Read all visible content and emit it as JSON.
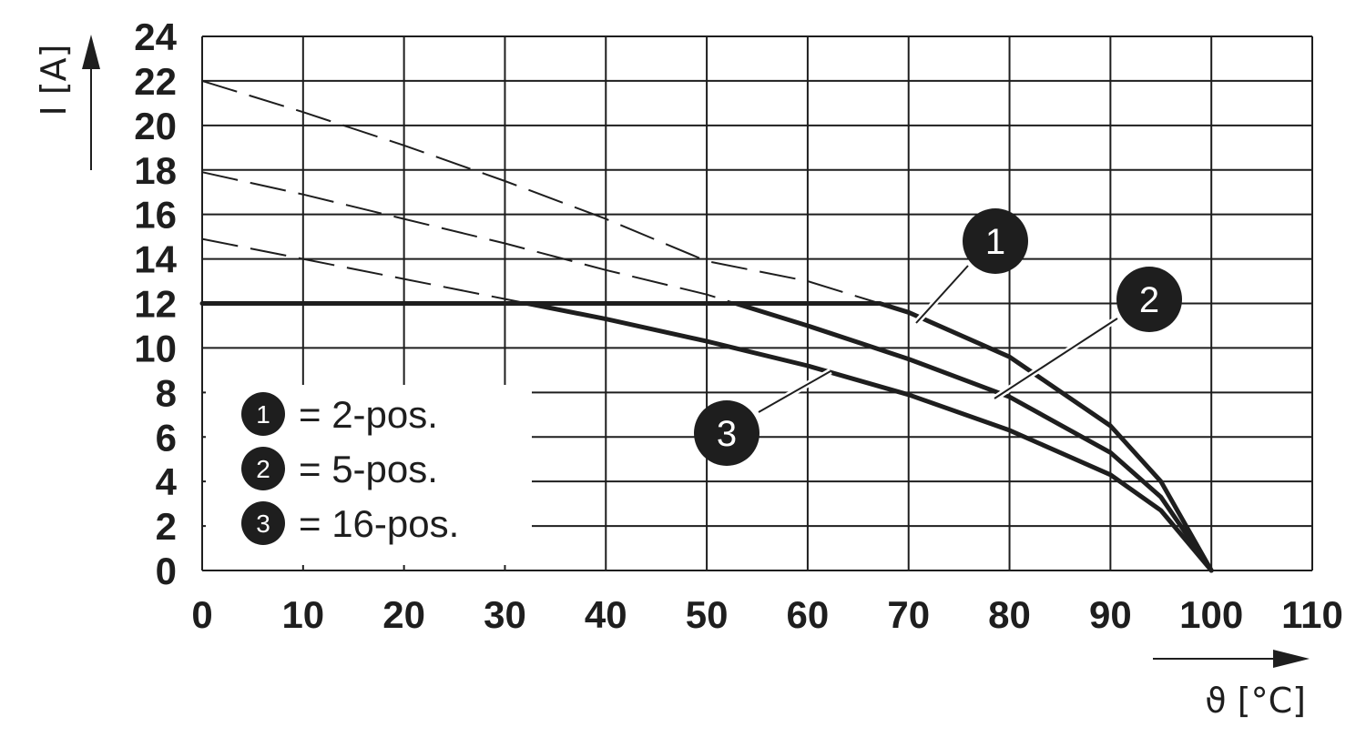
{
  "chart_data": {
    "type": "line",
    "xlabel": "ϑ [°C]",
    "ylabel": "I [A]",
    "xlim": [
      0,
      110
    ],
    "ylim": [
      0,
      24
    ],
    "x_ticks": [
      0,
      10,
      20,
      30,
      40,
      50,
      60,
      70,
      80,
      90,
      100,
      110
    ],
    "y_ticks": [
      0,
      2,
      4,
      6,
      8,
      10,
      12,
      14,
      16,
      18,
      20,
      22,
      24
    ],
    "x_tick_labels": [
      "0",
      "10",
      "20",
      "30",
      "40",
      "50",
      "60",
      "70",
      "80",
      "90",
      "100",
      "110"
    ],
    "y_tick_labels": [
      "0",
      "2",
      "4",
      "6",
      "8",
      "10",
      "12",
      "14",
      "16",
      "18",
      "20",
      "22",
      "24"
    ],
    "grid": true,
    "limit_line": {
      "style": "solid",
      "points": [
        [
          0,
          12
        ],
        [
          67,
          12
        ]
      ]
    },
    "series": [
      {
        "marker": "1",
        "name": "2-pos.",
        "derating": [
          [
            0,
            22
          ],
          [
            10,
            20.6
          ],
          [
            20,
            19.1
          ],
          [
            30,
            17.5
          ],
          [
            40,
            15.8
          ],
          [
            50,
            13.9
          ],
          [
            60,
            13.0
          ],
          [
            70,
            11.6
          ],
          [
            80,
            9.6
          ],
          [
            90,
            6.5
          ],
          [
            95,
            4.0
          ],
          [
            100,
            0
          ]
        ]
      },
      {
        "marker": "2",
        "name": "5-pos.",
        "derating": [
          [
            0,
            17.9
          ],
          [
            10,
            16.9
          ],
          [
            20,
            15.8
          ],
          [
            30,
            14.7
          ],
          [
            40,
            13.5
          ],
          [
            50,
            12.4
          ],
          [
            60,
            11.0
          ],
          [
            70,
            9.5
          ],
          [
            80,
            7.8
          ],
          [
            90,
            5.3
          ],
          [
            95,
            3.3
          ],
          [
            100,
            0
          ]
        ]
      },
      {
        "marker": "3",
        "name": "16-pos.",
        "derating": [
          [
            0,
            14.9
          ],
          [
            10,
            14.0
          ],
          [
            20,
            13.1
          ],
          [
            30,
            12.2
          ],
          [
            40,
            11.3
          ],
          [
            50,
            10.3
          ],
          [
            60,
            9.2
          ],
          [
            70,
            7.9
          ],
          [
            80,
            6.3
          ],
          [
            90,
            4.3
          ],
          [
            95,
            2.7
          ],
          [
            100,
            0
          ]
        ]
      }
    ]
  },
  "legend": [
    {
      "num": "1",
      "text": "= 2-pos."
    },
    {
      "num": "2",
      "text": "= 5-pos."
    },
    {
      "num": "3",
      "text": "= 16-pos."
    }
  ],
  "colors": {
    "ink": "#1e1e1e",
    "background": "#ffffff",
    "marker_text": "#ffffff"
  }
}
